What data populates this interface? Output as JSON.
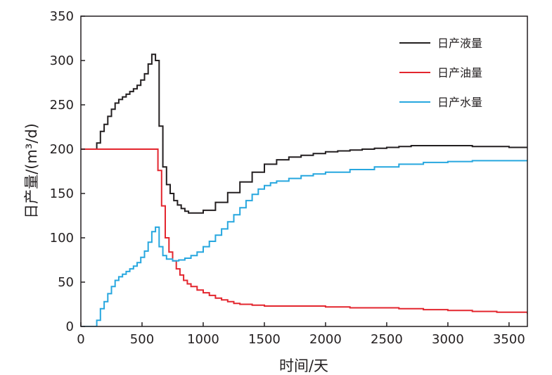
{
  "chart_data": {
    "type": "line",
    "xlabel": "时间/天",
    "ylabel": "日产量/(m³/d)",
    "xlim": [
      0,
      3650
    ],
    "ylim": [
      0,
      350
    ],
    "xticks": [
      0,
      500,
      1000,
      1500,
      2000,
      2500,
      3000,
      3500
    ],
    "yticks": [
      0,
      50,
      100,
      150,
      200,
      250,
      300,
      350
    ],
    "grid": false,
    "legend_position": "top-right",
    "series": [
      {
        "name": "日产液量",
        "color": "#231f20",
        "step": true,
        "x": [
          0,
          100,
          130,
          160,
          190,
          220,
          250,
          280,
          310,
          340,
          370,
          400,
          430,
          460,
          490,
          520,
          550,
          580,
          610,
          640,
          670,
          700,
          730,
          760,
          790,
          820,
          850,
          880,
          950,
          1000,
          1100,
          1200,
          1300,
          1400,
          1500,
          1600,
          1700,
          1800,
          1900,
          2000,
          2100,
          2200,
          2300,
          2400,
          2500,
          2600,
          2700,
          2800,
          2900,
          3000,
          3100,
          3200,
          3300,
          3400,
          3500,
          3650
        ],
        "values": [
          200,
          200,
          207,
          220,
          228,
          237,
          245,
          252,
          256,
          259,
          262,
          265,
          268,
          272,
          278,
          285,
          296,
          307,
          300,
          226,
          180,
          160,
          150,
          142,
          137,
          133,
          130,
          128,
          128,
          131,
          140,
          151,
          163,
          174,
          183,
          188,
          191,
          193,
          195,
          197,
          198,
          199,
          200,
          201,
          202,
          203,
          204,
          204,
          204,
          204,
          204,
          203,
          203,
          203,
          202,
          202
        ]
      },
      {
        "name": "日产油量",
        "color": "#e3262e",
        "step": true,
        "x": [
          0,
          600,
          630,
          660,
          690,
          720,
          750,
          780,
          810,
          840,
          870,
          900,
          950,
          1000,
          1050,
          1100,
          1150,
          1200,
          1250,
          1300,
          1400,
          1500,
          1600,
          1700,
          1800,
          2000,
          2200,
          2400,
          2600,
          2800,
          3000,
          3200,
          3400,
          3650
        ],
        "values": [
          200,
          200,
          176,
          136,
          100,
          84,
          74,
          65,
          58,
          52,
          48,
          45,
          41,
          38,
          35,
          32,
          30,
          28,
          26,
          25,
          24,
          23,
          23,
          23,
          23,
          22,
          21,
          21,
          20,
          19,
          18,
          17,
          16,
          14
        ]
      },
      {
        "name": "日产水量",
        "color": "#27a7df",
        "step": true,
        "x": [
          0,
          100,
          130,
          160,
          190,
          220,
          250,
          280,
          310,
          340,
          370,
          400,
          430,
          460,
          490,
          520,
          550,
          580,
          610,
          640,
          670,
          700,
          750,
          800,
          850,
          900,
          950,
          1000,
          1050,
          1100,
          1150,
          1200,
          1250,
          1300,
          1350,
          1400,
          1450,
          1500,
          1550,
          1600,
          1700,
          1800,
          1900,
          2000,
          2200,
          2400,
          2600,
          2800,
          3000,
          3200,
          3400,
          3650
        ],
        "values": [
          0,
          0,
          7,
          20,
          28,
          37,
          45,
          52,
          56,
          59,
          62,
          65,
          68,
          72,
          78,
          85,
          95,
          107,
          112,
          90,
          80,
          76,
          74,
          75,
          77,
          80,
          84,
          90,
          96,
          103,
          110,
          118,
          126,
          134,
          142,
          149,
          155,
          159,
          162,
          164,
          167,
          170,
          172,
          174,
          177,
          180,
          183,
          185,
          186,
          187,
          187,
          188
        ]
      }
    ]
  }
}
